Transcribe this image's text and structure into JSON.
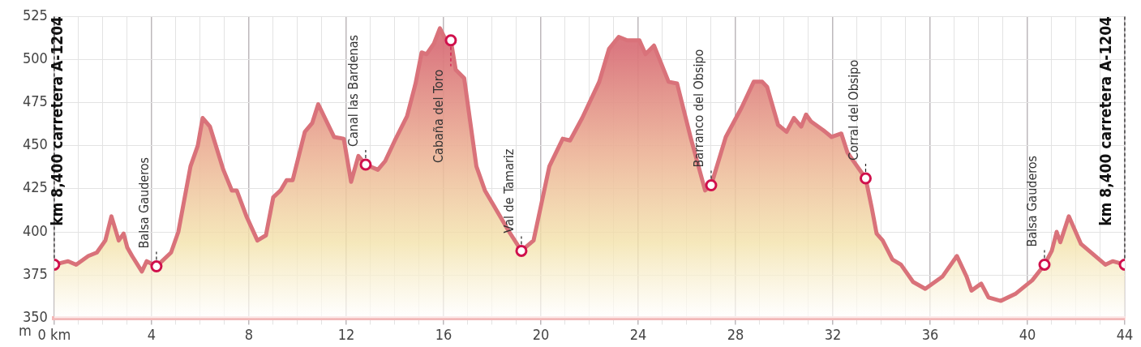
{
  "chart_data": {
    "type": "area",
    "ylabel": "m",
    "x": [
      0,
      0.57,
      0.9,
      1.4,
      1.75,
      2.1,
      2.35,
      2.65,
      2.85,
      3.0,
      3.2,
      3.6,
      3.8,
      4.2,
      4.8,
      5.1,
      5.6,
      5.9,
      6.1,
      6.4,
      6.95,
      7.3,
      7.5,
      7.9,
      8.35,
      8.7,
      9.0,
      9.3,
      9.55,
      9.8,
      10.3,
      10.6,
      10.85,
      11.5,
      11.9,
      12.2,
      12.5,
      12.8,
      13.3,
      13.6,
      14.0,
      14.5,
      14.85,
      15.1,
      15.3,
      15.6,
      15.85,
      16.1,
      16.3,
      16.5,
      16.85,
      17.35,
      17.7,
      18.2,
      18.7,
      19.2,
      19.7,
      20.35,
      20.9,
      21.2,
      21.7,
      22.4,
      22.8,
      23.2,
      23.55,
      24.05,
      24.3,
      24.65,
      25.25,
      25.6,
      26.15,
      26.75,
      27.0,
      27.6,
      28.25,
      28.75,
      29.1,
      29.3,
      29.75,
      30.1,
      30.4,
      30.7,
      30.9,
      31.1,
      31.6,
      31.95,
      32.35,
      32.6,
      33.35,
      33.6,
      33.8,
      34.05,
      34.45,
      34.8,
      35.3,
      35.8,
      36.5,
      37.1,
      37.5,
      37.7,
      38.1,
      38.4,
      38.9,
      39.5,
      40.2,
      40.7,
      41.0,
      41.2,
      41.35,
      41.7,
      42.2,
      42.7,
      43.2,
      43.5,
      44.0
    ],
    "series": [
      {
        "color": "#d9727a",
        "values": [
          381,
          383,
          381,
          386,
          388,
          395,
          409,
          395,
          399,
          391,
          386,
          377,
          383,
          380,
          388,
          400,
          438,
          450,
          466,
          461,
          436,
          424,
          424,
          409,
          395,
          398,
          420,
          424,
          430,
          430,
          458,
          463,
          474,
          455,
          454,
          429,
          444,
          439,
          436,
          441,
          453,
          467,
          486,
          504,
          503,
          509,
          518,
          511,
          511,
          494,
          489,
          438,
          424,
          412,
          400,
          389,
          395,
          438,
          454,
          453,
          466,
          487,
          506,
          513,
          511,
          511,
          503,
          508,
          487,
          486,
          455,
          424,
          427,
          455,
          472,
          487,
          487,
          484,
          462,
          458,
          466,
          461,
          468,
          464,
          459,
          455,
          457,
          446,
          431,
          414,
          399,
          395,
          384,
          381,
          371,
          367,
          374,
          386,
          374,
          366,
          370,
          362,
          360,
          364,
          372,
          381,
          389,
          400,
          394,
          409,
          393,
          387,
          381,
          383,
          381
        ]
      },
      {
        "type": "scatter",
        "color": "#d0104c",
        "marker": "circle",
        "x": [
          0,
          4.2,
          12.8,
          16.3,
          19.2,
          27.0,
          33.35,
          40.7,
          44.0
        ],
        "values": [
          381,
          380,
          439,
          511,
          389,
          427,
          431,
          381,
          381
        ]
      }
    ],
    "annotations": [
      {
        "text": "km 8,400 carretera A-1204",
        "x": 0,
        "y": 381
      },
      {
        "text": "Balsa Gauderos",
        "x": 4.2,
        "y": 380
      },
      {
        "text": "Canal las Bardenas",
        "x": 12.8,
        "y": 439
      },
      {
        "text": "Cabaña del Toro",
        "x": 16.3,
        "y": 511
      },
      {
        "text": "Val de Tamariz",
        "x": 19.2,
        "y": 389
      },
      {
        "text": "Barranco del Obsipo",
        "x": 27.0,
        "y": 427
      },
      {
        "text": "Corral del Obsipo",
        "x": 33.35,
        "y": 431
      },
      {
        "text": "Balsa Gauderos",
        "x": 40.7,
        "y": 381
      },
      {
        "text": "km 8,400 carretera A-1204",
        "x": 44.0,
        "y": 381
      }
    ],
    "xlim": [
      0,
      44
    ],
    "xticks": [
      {
        "value": 0,
        "label": "0 km"
      },
      {
        "value": 1,
        "label": null
      },
      {
        "value": 2,
        "label": null
      },
      {
        "value": 3,
        "label": null
      },
      4,
      {
        "value": 5,
        "label": null
      },
      {
        "value": 6,
        "label": null
      },
      {
        "value": 7,
        "label": null
      },
      8,
      {
        "value": 9,
        "label": null
      },
      {
        "value": 10,
        "label": null
      },
      {
        "value": 11,
        "label": null
      },
      12,
      {
        "value": 13,
        "label": null
      },
      {
        "value": 14,
        "label": null
      },
      {
        "value": 15,
        "label": null
      },
      16,
      {
        "value": 17,
        "label": null
      },
      {
        "value": 18,
        "label": null
      },
      {
        "value": 19,
        "label": null
      },
      20,
      {
        "value": 21,
        "label": null
      },
      {
        "value": 22,
        "label": null
      },
      {
        "value": 23,
        "label": null
      },
      24,
      {
        "value": 25,
        "label": null
      },
      {
        "value": 26,
        "label": null
      },
      {
        "value": 27,
        "label": null
      },
      28,
      {
        "value": 29,
        "label": null
      },
      {
        "value": 30,
        "label": null
      },
      {
        "value": 31,
        "label": null
      },
      32,
      {
        "value": 33,
        "label": null
      },
      {
        "value": 34,
        "label": null
      },
      {
        "value": 35,
        "label": null
      },
      36,
      {
        "value": 37,
        "label": null
      },
      {
        "value": 38,
        "label": null
      },
      {
        "value": 39,
        "label": null
      },
      40,
      {
        "value": 41,
        "label": null
      },
      {
        "value": 42,
        "label": null
      },
      {
        "value": 43,
        "label": null
      },
      44
    ],
    "ylim": [
      350,
      525
    ],
    "yticks": [
      350,
      375,
      400,
      425,
      450,
      475,
      500,
      525
    ],
    "grid": true,
    "legend": false
  }
}
